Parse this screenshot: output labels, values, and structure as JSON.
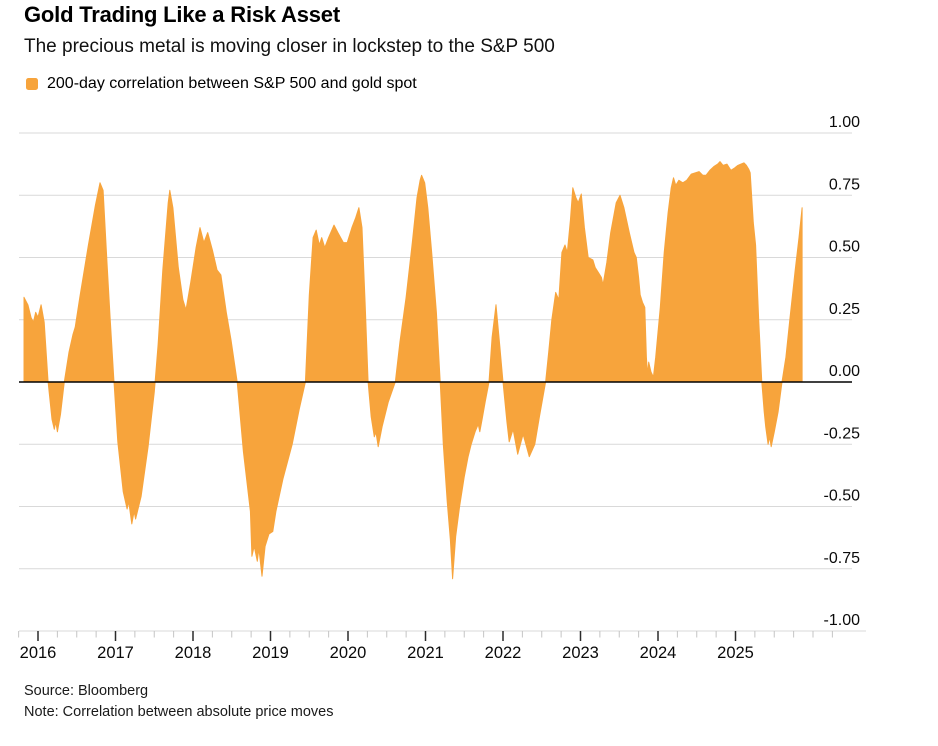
{
  "chart_data": {
    "type": "area",
    "title": "Gold Trading Like a Risk Asset",
    "subtitle": "The precious metal is moving closer in lockstep to the S&P 500",
    "legend": [
      {
        "label": "200-day correlation between S&P 500 and gold spot",
        "color": "#F7A43C"
      }
    ],
    "x_axis": {
      "tick_labels": [
        "2016",
        "2017",
        "2018",
        "2019",
        "2020",
        "2021",
        "2022",
        "2023",
        "2024",
        "2025"
      ],
      "minor_tick_interval_years": 0.25,
      "domain": [
        2015.75,
        2026.45
      ]
    },
    "y_axis": {
      "tick_labels": [
        "1.00",
        "0.75",
        "0.50",
        "0.25",
        "0.00",
        "-0.25",
        "-0.50",
        "-0.75",
        "-1.00"
      ],
      "min": -1.0,
      "max": 1.0
    },
    "zero_line": true,
    "grid": true,
    "legend_position": "top-left",
    "colors": {
      "area": "#F7A43C",
      "grid": "#D9D9D9",
      "zero_line": "#000000",
      "axis_major_tick": "#2b2b2b",
      "axis_minor_tick": "#c4c4c4",
      "text": "#0a0a0a"
    },
    "series": [
      {
        "name": "200-day correlation between S&P 500 and gold spot",
        "points": [
          [
            2015.82,
            0.34
          ],
          [
            2015.87,
            0.31
          ],
          [
            2015.91,
            0.26
          ],
          [
            2015.94,
            0.24
          ],
          [
            2015.97,
            0.28
          ],
          [
            2016.0,
            0.26
          ],
          [
            2016.04,
            0.31
          ],
          [
            2016.08,
            0.24
          ],
          [
            2016.13,
            0.0
          ],
          [
            2016.18,
            -0.15
          ],
          [
            2016.21,
            -0.19
          ],
          [
            2016.23,
            -0.16
          ],
          [
            2016.25,
            -0.2
          ],
          [
            2016.29,
            -0.13
          ],
          [
            2016.34,
            0.0
          ],
          [
            2016.4,
            0.12
          ],
          [
            2016.45,
            0.19
          ],
          [
            2016.48,
            0.22
          ],
          [
            2016.54,
            0.34
          ],
          [
            2016.65,
            0.55
          ],
          [
            2016.74,
            0.71
          ],
          [
            2016.8,
            0.8
          ],
          [
            2016.84,
            0.77
          ],
          [
            2016.89,
            0.48
          ],
          [
            2016.93,
            0.26
          ],
          [
            2016.98,
            0.0
          ],
          [
            2017.03,
            -0.24
          ],
          [
            2017.1,
            -0.44
          ],
          [
            2017.15,
            -0.51
          ],
          [
            2017.17,
            -0.48
          ],
          [
            2017.21,
            -0.57
          ],
          [
            2017.24,
            -0.52
          ],
          [
            2017.26,
            -0.55
          ],
          [
            2017.33,
            -0.46
          ],
          [
            2017.42,
            -0.26
          ],
          [
            2017.5,
            -0.04
          ],
          [
            2017.55,
            0.15
          ],
          [
            2017.61,
            0.45
          ],
          [
            2017.68,
            0.72
          ],
          [
            2017.7,
            0.77
          ],
          [
            2017.74,
            0.7
          ],
          [
            2017.81,
            0.46
          ],
          [
            2017.87,
            0.33
          ],
          [
            2017.91,
            0.29
          ],
          [
            2017.97,
            0.4
          ],
          [
            2018.04,
            0.54
          ],
          [
            2018.09,
            0.62
          ],
          [
            2018.14,
            0.56
          ],
          [
            2018.19,
            0.6
          ],
          [
            2018.25,
            0.53
          ],
          [
            2018.31,
            0.45
          ],
          [
            2018.36,
            0.43
          ],
          [
            2018.43,
            0.28
          ],
          [
            2018.49,
            0.17
          ],
          [
            2018.57,
            0.0
          ],
          [
            2018.65,
            -0.28
          ],
          [
            2018.74,
            -0.52
          ],
          [
            2018.76,
            -0.7
          ],
          [
            2018.79,
            -0.66
          ],
          [
            2018.83,
            -0.72
          ],
          [
            2018.85,
            -0.67
          ],
          [
            2018.89,
            -0.78
          ],
          [
            2018.93,
            -0.66
          ],
          [
            2018.98,
            -0.61
          ],
          [
            2019.03,
            -0.6
          ],
          [
            2019.07,
            -0.52
          ],
          [
            2019.16,
            -0.39
          ],
          [
            2019.28,
            -0.25
          ],
          [
            2019.37,
            -0.11
          ],
          [
            2019.45,
            0.0
          ],
          [
            2019.5,
            0.35
          ],
          [
            2019.55,
            0.58
          ],
          [
            2019.59,
            0.61
          ],
          [
            2019.63,
            0.55
          ],
          [
            2019.66,
            0.58
          ],
          [
            2019.7,
            0.54
          ],
          [
            2019.75,
            0.58
          ],
          [
            2019.82,
            0.63
          ],
          [
            2019.87,
            0.6
          ],
          [
            2019.94,
            0.56
          ],
          [
            2019.99,
            0.56
          ],
          [
            2020.05,
            0.62
          ],
          [
            2020.1,
            0.66
          ],
          [
            2020.14,
            0.7
          ],
          [
            2020.18,
            0.62
          ],
          [
            2020.22,
            0.32
          ],
          [
            2020.26,
            0.0
          ],
          [
            2020.3,
            -0.14
          ],
          [
            2020.34,
            -0.22
          ],
          [
            2020.36,
            -0.2
          ],
          [
            2020.39,
            -0.26
          ],
          [
            2020.44,
            -0.18
          ],
          [
            2020.52,
            -0.08
          ],
          [
            2020.61,
            0.0
          ],
          [
            2020.67,
            0.16
          ],
          [
            2020.75,
            0.34
          ],
          [
            2020.83,
            0.56
          ],
          [
            2020.89,
            0.74
          ],
          [
            2020.93,
            0.81
          ],
          [
            2020.95,
            0.83
          ],
          [
            2020.99,
            0.8
          ],
          [
            2021.03,
            0.7
          ],
          [
            2021.08,
            0.52
          ],
          [
            2021.14,
            0.28
          ],
          [
            2021.19,
            0.0
          ],
          [
            2021.23,
            -0.25
          ],
          [
            2021.28,
            -0.48
          ],
          [
            2021.32,
            -0.63
          ],
          [
            2021.35,
            -0.79
          ],
          [
            2021.39,
            -0.62
          ],
          [
            2021.44,
            -0.5
          ],
          [
            2021.5,
            -0.38
          ],
          [
            2021.55,
            -0.3
          ],
          [
            2021.59,
            -0.25
          ],
          [
            2021.64,
            -0.2
          ],
          [
            2021.68,
            -0.17
          ],
          [
            2021.7,
            -0.2
          ],
          [
            2021.73,
            -0.15
          ],
          [
            2021.77,
            -0.08
          ],
          [
            2021.82,
            0.0
          ],
          [
            2021.86,
            0.18
          ],
          [
            2021.91,
            0.31
          ],
          [
            2021.96,
            0.14
          ],
          [
            2022.0,
            0.0
          ],
          [
            2022.05,
            -0.16
          ],
          [
            2022.08,
            -0.24
          ],
          [
            2022.13,
            -0.19
          ],
          [
            2022.19,
            -0.29
          ],
          [
            2022.26,
            -0.21
          ],
          [
            2022.34,
            -0.3
          ],
          [
            2022.41,
            -0.25
          ],
          [
            2022.47,
            -0.14
          ],
          [
            2022.55,
            0.0
          ],
          [
            2022.59,
            0.12
          ],
          [
            2022.63,
            0.25
          ],
          [
            2022.68,
            0.36
          ],
          [
            2022.72,
            0.33
          ],
          [
            2022.76,
            0.52
          ],
          [
            2022.8,
            0.55
          ],
          [
            2022.83,
            0.52
          ],
          [
            2022.87,
            0.65
          ],
          [
            2022.9,
            0.78
          ],
          [
            2022.94,
            0.74
          ],
          [
            2022.97,
            0.72
          ],
          [
            2023.01,
            0.755
          ],
          [
            2023.05,
            0.62
          ],
          [
            2023.1,
            0.5
          ],
          [
            2023.16,
            0.49
          ],
          [
            2023.19,
            0.46
          ],
          [
            2023.23,
            0.44
          ],
          [
            2023.27,
            0.42
          ],
          [
            2023.29,
            0.39
          ],
          [
            2023.34,
            0.48
          ],
          [
            2023.39,
            0.6
          ],
          [
            2023.46,
            0.72
          ],
          [
            2023.51,
            0.75
          ],
          [
            2023.56,
            0.7
          ],
          [
            2023.63,
            0.6
          ],
          [
            2023.69,
            0.52
          ],
          [
            2023.72,
            0.5
          ],
          [
            2023.75,
            0.42
          ],
          [
            2023.77,
            0.35
          ],
          [
            2023.8,
            0.32
          ],
          [
            2023.83,
            0.3
          ],
          [
            2023.85,
            0.1
          ],
          [
            2023.865,
            0.03
          ],
          [
            2023.88,
            0.08
          ],
          [
            2023.91,
            0.04
          ],
          [
            2023.94,
            0.02
          ],
          [
            2023.97,
            0.1
          ],
          [
            2024.03,
            0.3
          ],
          [
            2024.08,
            0.52
          ],
          [
            2024.13,
            0.68
          ],
          [
            2024.17,
            0.78
          ],
          [
            2024.2,
            0.82
          ],
          [
            2024.23,
            0.79
          ],
          [
            2024.27,
            0.81
          ],
          [
            2024.32,
            0.8
          ],
          [
            2024.37,
            0.81
          ],
          [
            2024.43,
            0.835
          ],
          [
            2024.48,
            0.84
          ],
          [
            2024.53,
            0.845
          ],
          [
            2024.58,
            0.83
          ],
          [
            2024.62,
            0.83
          ],
          [
            2024.67,
            0.85
          ],
          [
            2024.72,
            0.865
          ],
          [
            2024.77,
            0.875
          ],
          [
            2024.8,
            0.885
          ],
          [
            2024.84,
            0.87
          ],
          [
            2024.89,
            0.875
          ],
          [
            2024.94,
            0.85
          ],
          [
            2024.99,
            0.86
          ],
          [
            2025.03,
            0.87
          ],
          [
            2025.07,
            0.875
          ],
          [
            2025.11,
            0.88
          ],
          [
            2025.14,
            0.87
          ],
          [
            2025.17,
            0.855
          ],
          [
            2025.19,
            0.84
          ],
          [
            2025.23,
            0.64
          ],
          [
            2025.26,
            0.55
          ],
          [
            2025.3,
            0.25
          ],
          [
            2025.34,
            0.0
          ],
          [
            2025.37,
            -0.12
          ],
          [
            2025.39,
            -0.18
          ],
          [
            2025.42,
            -0.25
          ],
          [
            2025.44,
            -0.22
          ],
          [
            2025.46,
            -0.26
          ],
          [
            2025.5,
            -0.2
          ],
          [
            2025.55,
            -0.12
          ],
          [
            2025.6,
            0.0
          ],
          [
            2025.65,
            0.1
          ],
          [
            2025.7,
            0.25
          ],
          [
            2025.77,
            0.45
          ],
          [
            2025.82,
            0.58
          ],
          [
            2025.86,
            0.7
          ]
        ]
      }
    ]
  },
  "footer": {
    "source": "Source: Bloomberg",
    "note": "Note: Correlation between absolute price moves"
  }
}
